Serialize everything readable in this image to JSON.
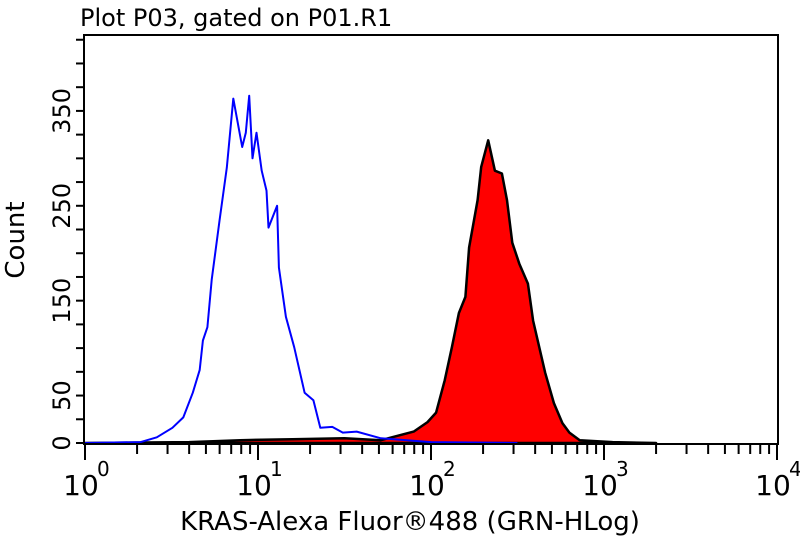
{
  "chart_data": {
    "type": "area",
    "title": "Plot P03, gated on P01.R1",
    "xlabel": "KRAS-Alexa Fluor®488 (GRN-HLog)",
    "ylabel": "Count",
    "x_scale": "log",
    "xlim": [
      1,
      10000
    ],
    "ylim": [
      0,
      430
    ],
    "x_tick_labels": [
      {
        "base": "10",
        "exp": "0",
        "value": 1
      },
      {
        "base": "10",
        "exp": "1",
        "value": 10
      },
      {
        "base": "10",
        "exp": "2",
        "value": 100
      },
      {
        "base": "10",
        "exp": "3",
        "value": 1000
      },
      {
        "base": "10",
        "exp": "4",
        "value": 10000
      }
    ],
    "y_tick_labels": [
      "0",
      "50",
      "150",
      "250",
      "350"
    ],
    "y_tick_values": [
      0,
      50,
      150,
      250,
      350
    ],
    "y_minor_step": 25,
    "grid": false,
    "series": [
      {
        "style": "outline",
        "color": "#0000ff",
        "x": [
          1,
          2.1,
          2.6,
          3.2,
          3.7,
          4.2,
          4.6,
          4.8,
          5.1,
          5.4,
          6.0,
          6.6,
          7.2,
          8.1,
          8.5,
          8.9,
          9.3,
          9.8,
          10.5,
          11.2,
          11.5,
          12.9,
          13.2,
          14.5,
          16.2,
          18.6,
          20.9,
          22.9,
          26.9,
          30.9,
          37.2,
          51.3,
          100,
          316
        ],
        "y": [
          0,
          1,
          6,
          16,
          27,
          53,
          77,
          108,
          122,
          172,
          235,
          290,
          363,
          312,
          327,
          366,
          300,
          327,
          287,
          266,
          227,
          250,
          185,
          133,
          101,
          53,
          45,
          16,
          17,
          11,
          12,
          5,
          1,
          0
        ]
      },
      {
        "style": "filled",
        "color": "#ff0000",
        "outline": "#000000",
        "x": [
          1,
          4.0,
          7.9,
          15.8,
          31.6,
          51.3,
          79.4,
          95.5,
          107,
          120,
          132,
          145,
          158,
          166,
          186,
          195,
          214,
          234,
          257,
          275,
          295,
          324,
          363,
          389,
          457,
          513,
          575,
          631,
          724,
          1122,
          2000
        ],
        "y": [
          0,
          1,
          3,
          4,
          5,
          3,
          12,
          22,
          32,
          66,
          101,
          137,
          154,
          206,
          256,
          291,
          319,
          287,
          284,
          256,
          211,
          189,
          168,
          129,
          74,
          42,
          21,
          11,
          3,
          1,
          0
        ]
      }
    ]
  }
}
